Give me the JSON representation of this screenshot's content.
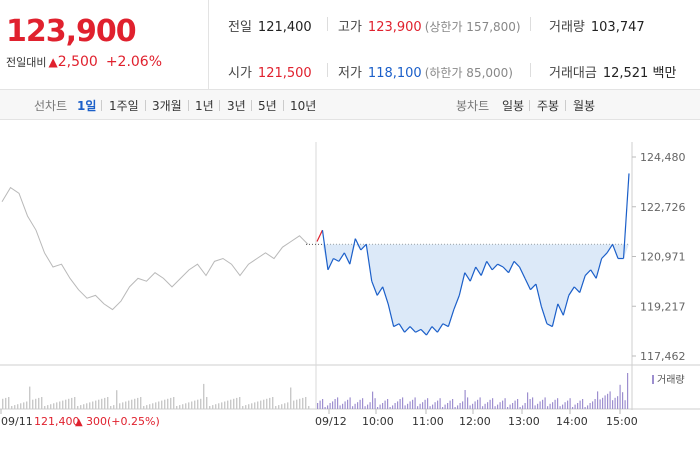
{
  "summary": {
    "current_price": "123,900",
    "change_label": "전일대비",
    "change_arrow": "▲",
    "change_amount": "2,500",
    "change_percent": "+2.06%",
    "prev_close": {
      "label": "전일",
      "value": "121,400"
    },
    "high": {
      "label": "고가",
      "value": "123,900",
      "limit": "(상한가 157,800)"
    },
    "volume": {
      "label": "거래량",
      "value": "103,747"
    },
    "open": {
      "label": "시가",
      "value": "121,500"
    },
    "low": {
      "label": "저가",
      "value": "118,100",
      "limit": "(하한가 85,000)"
    },
    "trade_value": {
      "label": "거래대금",
      "value": "12,521",
      "unit": "백만"
    }
  },
  "tabs": {
    "line_chart_label": "선차트",
    "line_chart_tabs": [
      "1일",
      "1주일",
      "3개월",
      "1년",
      "3년",
      "5년",
      "10년"
    ],
    "active_tab": "1일",
    "candle_chart_label": "봉차트",
    "candle_chart_tabs": [
      "일봉",
      "주봉",
      "월봉"
    ]
  },
  "chart_data": {
    "type": "line",
    "y_ticks": [
      "124,480",
      "122,726",
      "120,971",
      "119,217",
      "117,462"
    ],
    "ylim": [
      117462,
      124480
    ],
    "x_labels": [
      "09/11",
      "09/12",
      "10:00",
      "11:00",
      "12:00",
      "13:00",
      "14:00",
      "15:00"
    ],
    "prev_day_footer": {
      "date": "09/11",
      "close": "121,400",
      "arrow": "▲",
      "change": "300",
      "pct": "(+0.25%)"
    },
    "reference_price": 121400,
    "volume_legend": "거래량",
    "prev_day_series": [
      122900,
      123400,
      123200,
      122400,
      121900,
      121100,
      120600,
      120700,
      120200,
      119800,
      119500,
      119600,
      119300,
      119100,
      119400,
      119900,
      120200,
      120100,
      120400,
      120200,
      119900,
      120200,
      120500,
      120700,
      120300,
      120800,
      120900,
      120700,
      120300,
      120700,
      120900,
      121100,
      120900,
      121300,
      121500,
      121700,
      121400
    ],
    "today_series": [
      121500,
      121900,
      120500,
      120900,
      120800,
      121100,
      120700,
      121600,
      121200,
      121400,
      120100,
      119600,
      119900,
      119300,
      118500,
      118600,
      118300,
      118500,
      118300,
      118400,
      118200,
      118500,
      118300,
      118600,
      118500,
      119100,
      119600,
      120400,
      120100,
      120600,
      120300,
      120800,
      120500,
      120700,
      120600,
      120400,
      120800,
      120600,
      120200,
      119800,
      120000,
      119200,
      118600,
      118500,
      119300,
      118900,
      119600,
      119900,
      119700,
      120300,
      120500,
      120200,
      120900,
      121100,
      121400,
      120900,
      120900,
      123900
    ],
    "colors": {
      "up": "#e0212e",
      "down": "#1b5fc9",
      "prev_line": "#b9b9b9",
      "fill": "#dce9f8",
      "volume": "#9d8fcf",
      "prev_volume": "#c9c9c9"
    }
  }
}
